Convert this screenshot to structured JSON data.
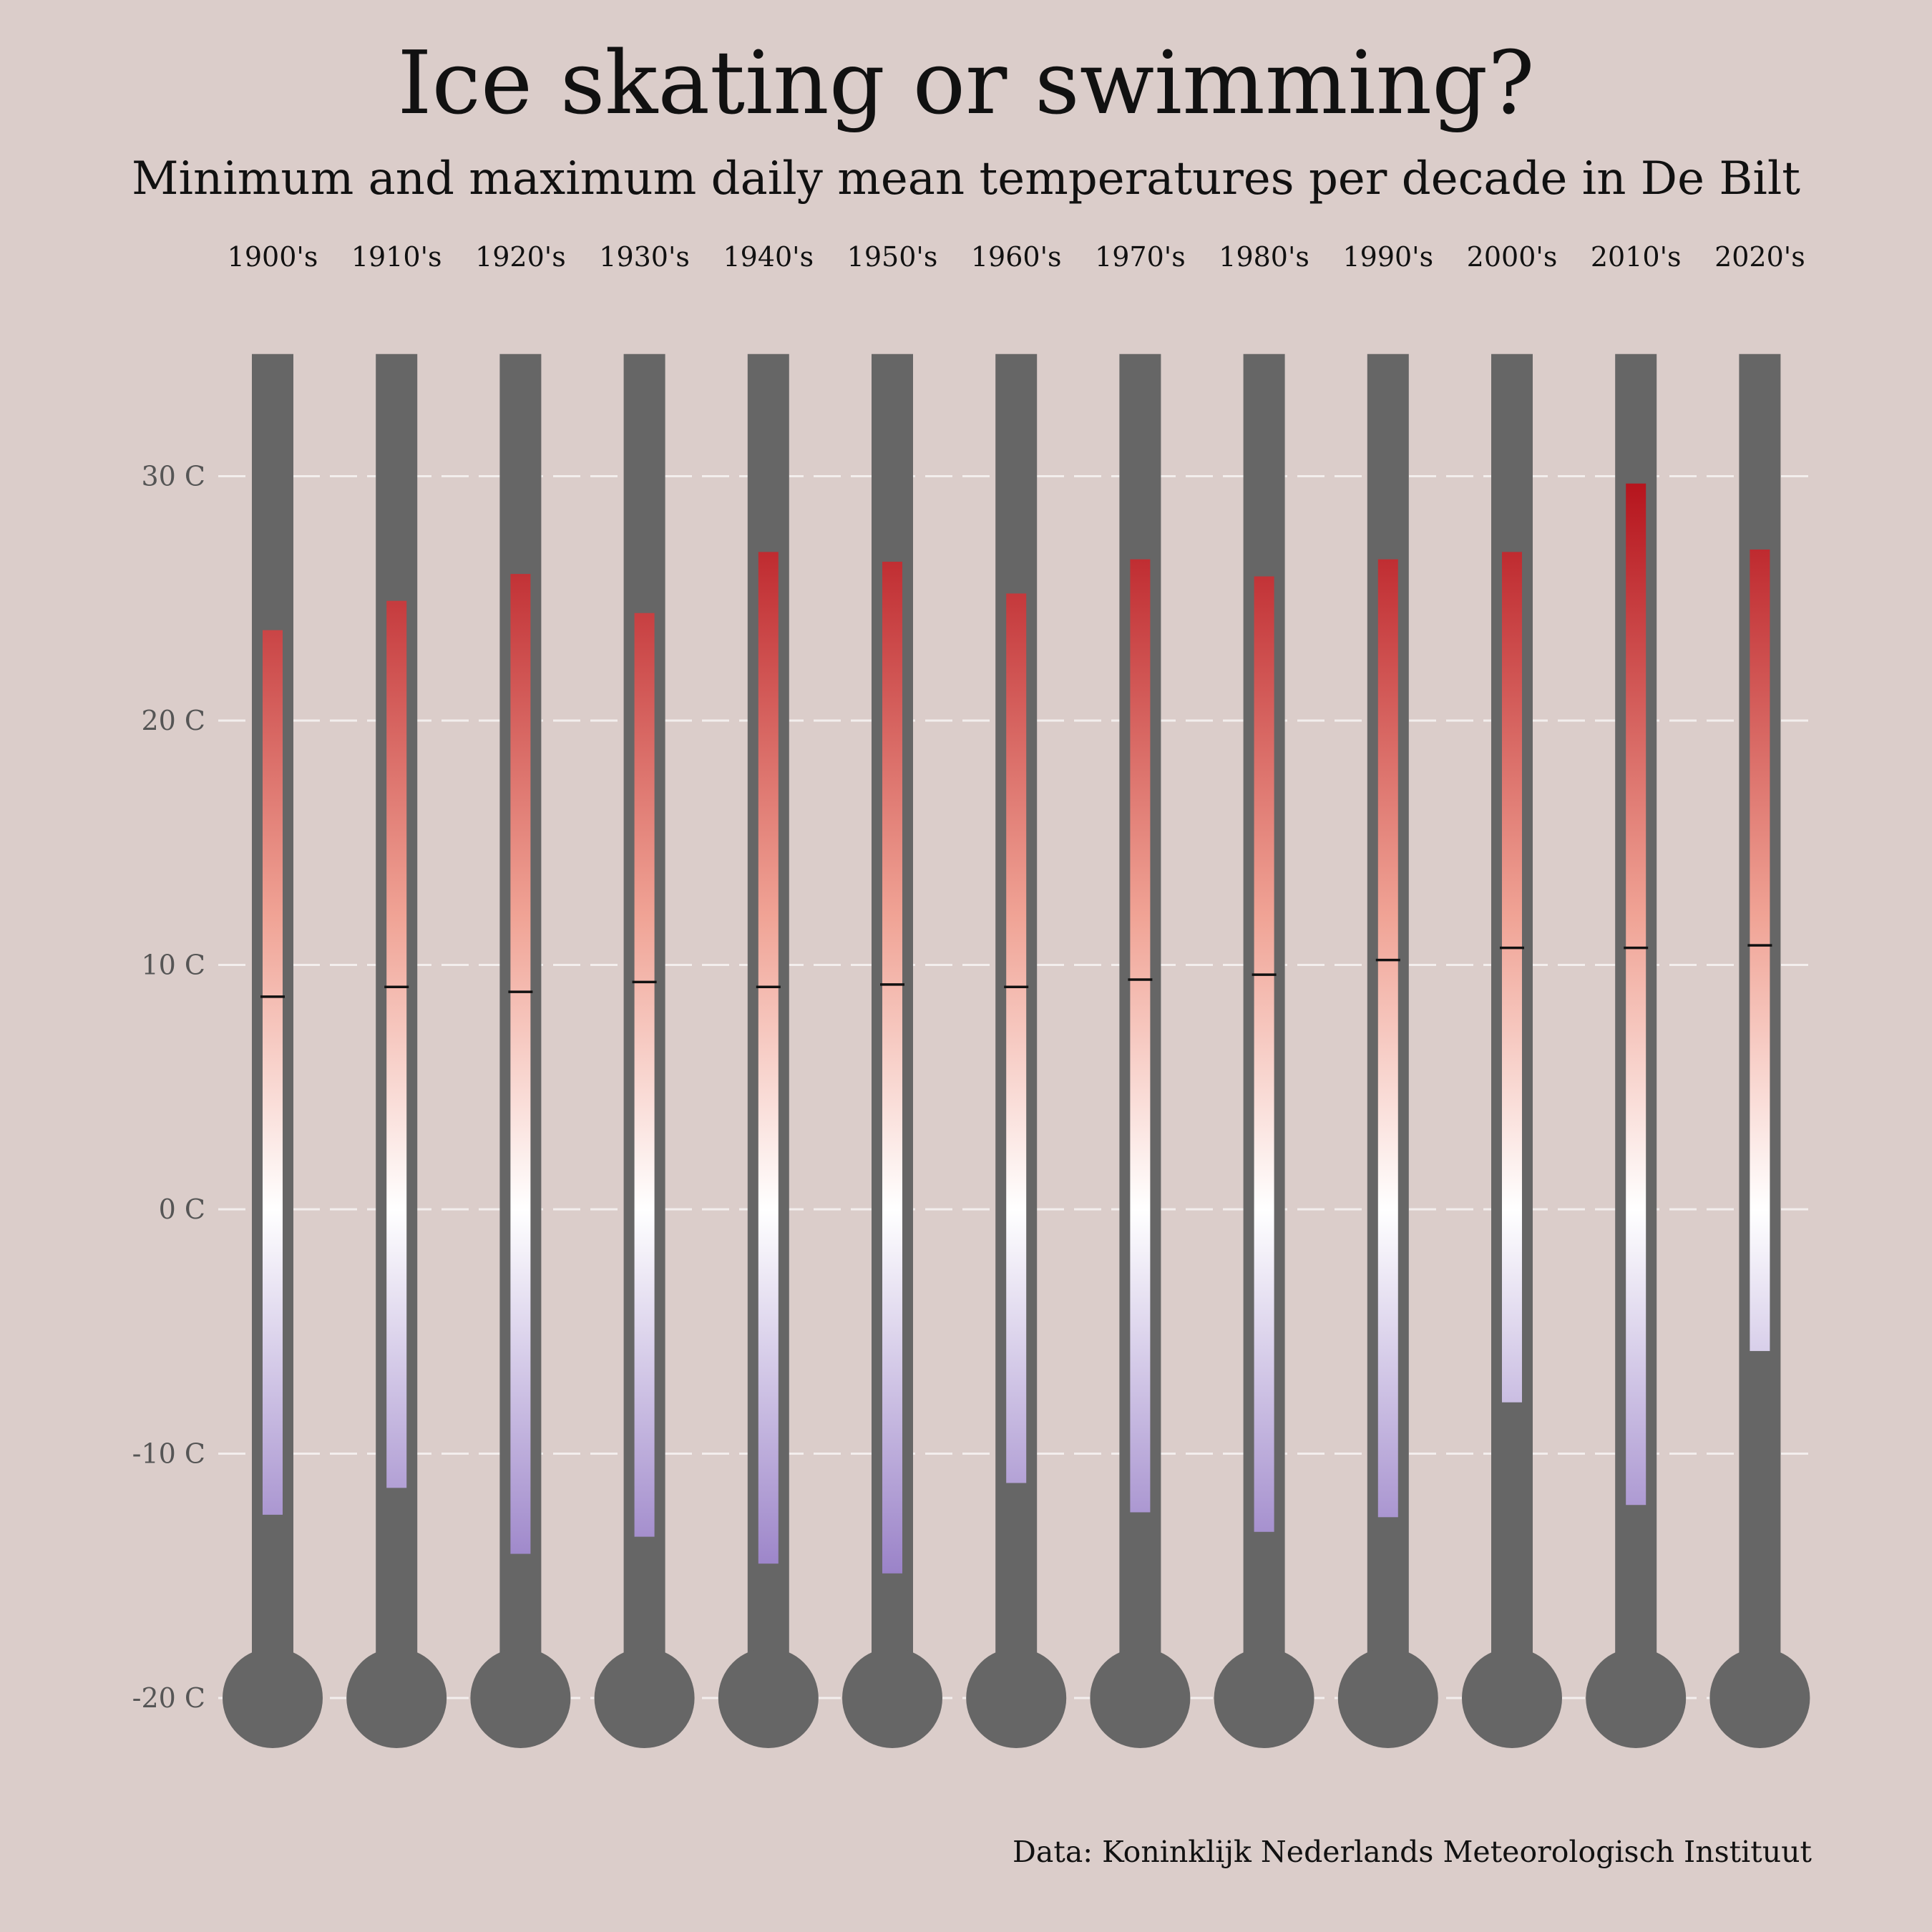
{
  "title": "Ice skating or swimming?",
  "subtitle": "Minimum and maximum daily mean temperatures per decade in De Bilt",
  "caption": "Data: Koninklijk Nederlands Meteorologisch Instituut",
  "colors": {
    "background": "#dbcdca",
    "tube": "#666666",
    "gridline": "#f3eeed",
    "cold": "#9a82c8",
    "neutral": "#ffffff",
    "warm_mid": "#f0a395",
    "hot": "#b5121b",
    "mean_marker": "#111111",
    "axis_text": "#555555"
  },
  "chart_data": {
    "type": "bar",
    "title": "Ice skating or swimming?",
    "subtitle": "Minimum and maximum daily mean temperatures per decade in De Bilt",
    "caption": "Data: Koninklijk Nederlands Meteorologisch Instituut",
    "xlabel": "",
    "ylabel": "",
    "ylim": [
      -20,
      35
    ],
    "grid": true,
    "y_ticks": [
      30,
      20,
      10,
      0,
      -10,
      -20
    ],
    "y_tick_labels": [
      "30 C",
      "20 C",
      "10 C",
      "0 C",
      "-10 C",
      "-20 C"
    ],
    "categories": [
      "1900's",
      "1910's",
      "1920's",
      "1930's",
      "1940's",
      "1950's",
      "1960's",
      "1970's",
      "1980's",
      "1990's",
      "2000's",
      "2010's",
      "2020's"
    ],
    "series": [
      {
        "name": "min",
        "values": [
          -12.5,
          -11.4,
          -14.1,
          -13.4,
          -14.5,
          -14.9,
          -11.2,
          -12.4,
          -13.2,
          -12.6,
          -7.9,
          -12.1,
          -5.8
        ]
      },
      {
        "name": "max",
        "values": [
          23.7,
          24.9,
          26.0,
          24.4,
          26.9,
          26.5,
          25.2,
          26.6,
          25.9,
          26.6,
          26.9,
          29.7,
          27.0
        ]
      },
      {
        "name": "mean",
        "values": [
          8.7,
          9.1,
          8.9,
          9.3,
          9.1,
          9.2,
          9.1,
          9.4,
          9.6,
          10.2,
          10.7,
          10.7,
          10.8
        ]
      }
    ]
  }
}
